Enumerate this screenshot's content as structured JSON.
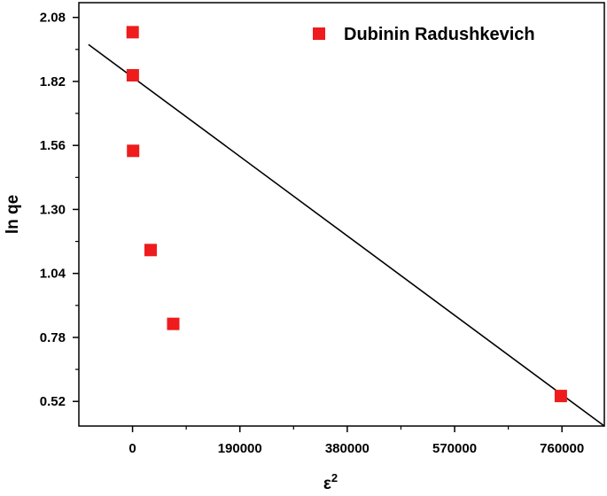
{
  "chart_data": {
    "type": "scatter",
    "xlabel": "ε",
    "xlabel_superscript": "2",
    "ylabel": "ln qe",
    "xlim": [
      -95000,
      835000
    ],
    "ylim": [
      0.42,
      2.14
    ],
    "xticks": [
      0,
      190000,
      380000,
      570000,
      760000
    ],
    "xtick_labels": [
      "0",
      "190000",
      "380000",
      "570000",
      "760000"
    ],
    "yticks": [
      0.52,
      0.78,
      1.04,
      1.3,
      1.56,
      1.82,
      2.08
    ],
    "ytick_labels": [
      "0.52",
      "0.78",
      "1.04",
      "1.30",
      "1.56",
      "1.82",
      "2.08"
    ],
    "grid": false,
    "legend_position": "top-right",
    "series": [
      {
        "name": "Dubinin Radushkevich",
        "marker": "square",
        "color": "#ee1c1c",
        "points": [
          {
            "x": 200,
            "y": 2.02
          },
          {
            "x": 500,
            "y": 1.845
          },
          {
            "x": 1000,
            "y": 1.538
          },
          {
            "x": 32000,
            "y": 1.135
          },
          {
            "x": 72000,
            "y": 0.835
          },
          {
            "x": 758000,
            "y": 0.542
          }
        ]
      }
    ],
    "fit_line": {
      "color": "#000000",
      "points": [
        {
          "x": -78000,
          "y": 1.97
        },
        {
          "x": 835000,
          "y": 0.42
        }
      ]
    }
  }
}
